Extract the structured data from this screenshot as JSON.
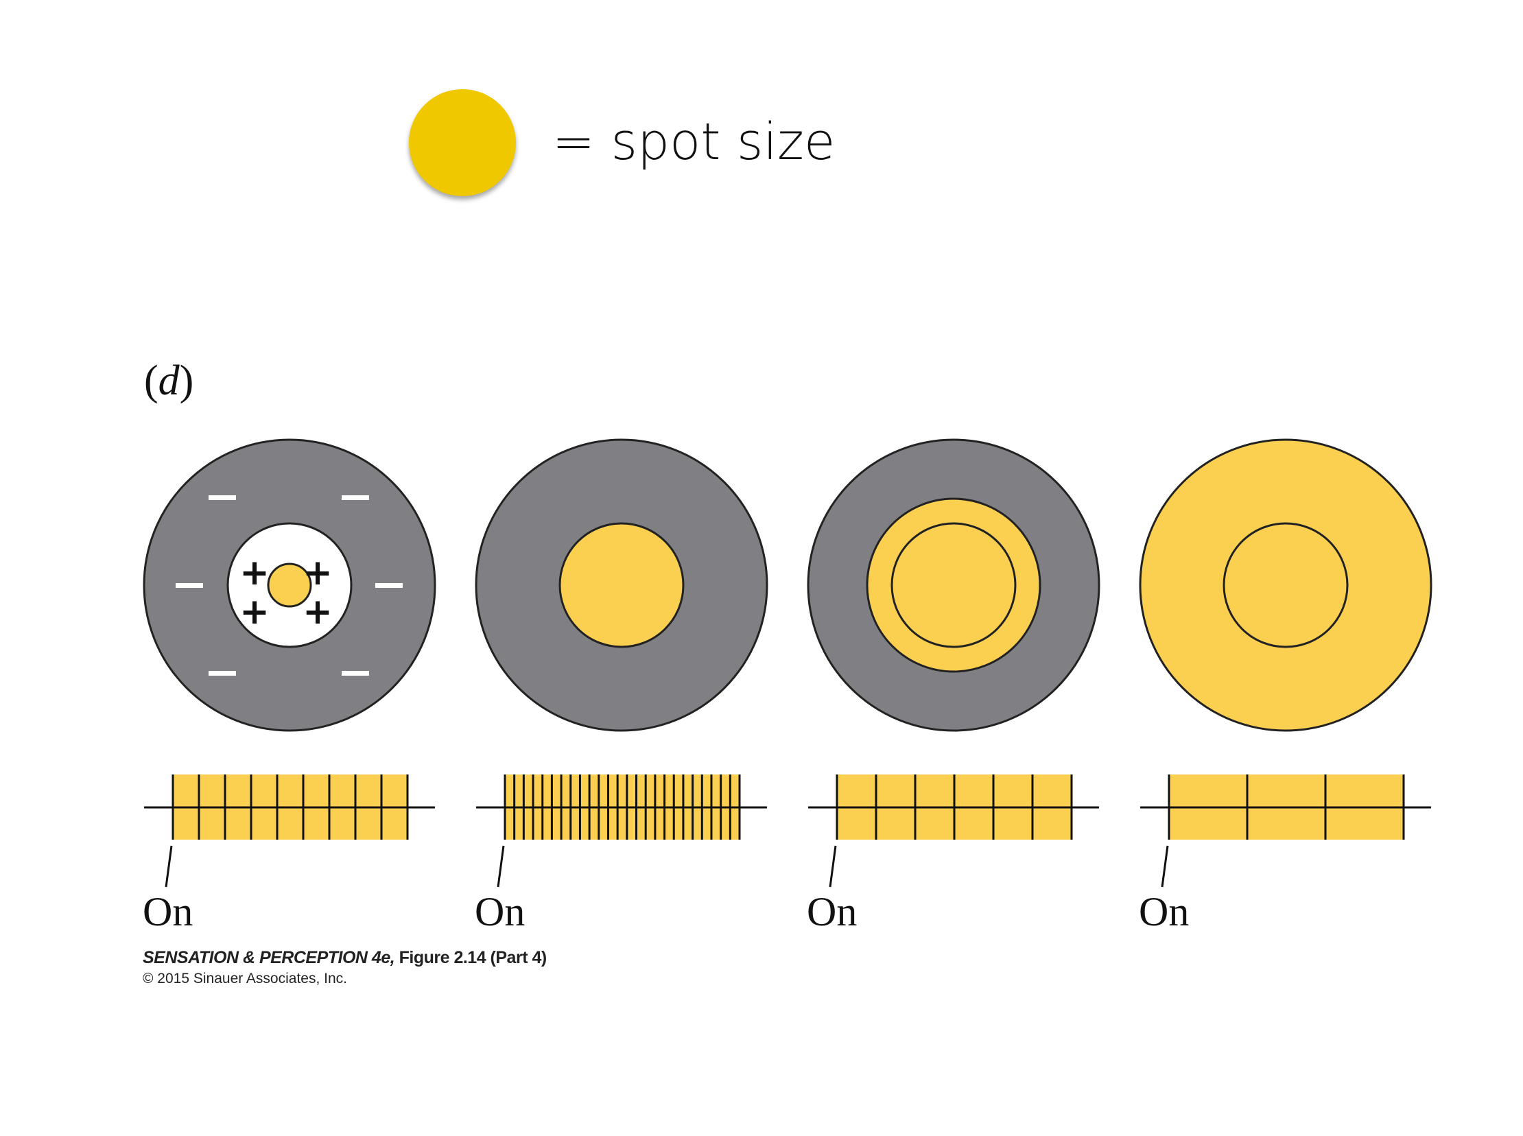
{
  "legend": {
    "text": "= spot size",
    "spot_color": "#f0c800"
  },
  "part_label": {
    "open": "(",
    "letter": "d",
    "close": ")"
  },
  "panels": [
    {
      "id": "1",
      "on_label": "On",
      "spike_count": 10
    },
    {
      "id": "2",
      "on_label": "On",
      "spike_count": 26
    },
    {
      "id": "3",
      "on_label": "On",
      "spike_count": 7
    },
    {
      "id": "4",
      "on_label": "On",
      "spike_count": 4
    }
  ],
  "signs": {
    "plus": "+",
    "minus": "−"
  },
  "caption": {
    "book": "SENSATION & PERCEPTION 4e,",
    "figure": " Figure 2.14 (Part 4)",
    "copyright": "© 2015 Sinauer Associates, Inc."
  },
  "colors": {
    "surround": "#808084",
    "stimulus": "#fbd050",
    "center_bg": "#ffffff",
    "outline": "#222222"
  }
}
